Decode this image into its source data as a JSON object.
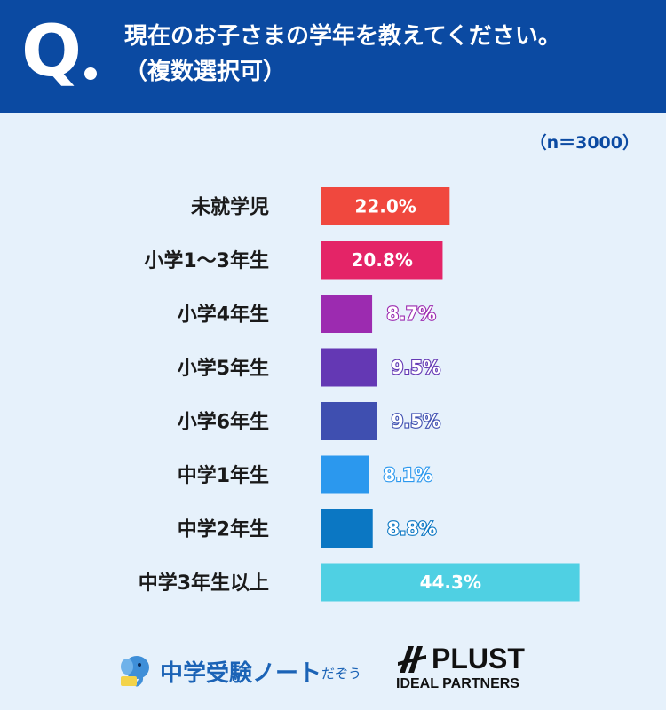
{
  "header": {
    "q_mark": "Q",
    "question_line1": "現在のお子さまの学年を教えてください。",
    "question_line2": "（複数選択可）"
  },
  "sample_size": "（n＝3000）",
  "chart_data": {
    "type": "bar",
    "orientation": "horizontal",
    "categories": [
      "未就学児",
      "小学1〜3年生",
      "小学4年生",
      "小学5年生",
      "小学6年生",
      "中学1年生",
      "中学2年生",
      "中学3年生以上"
    ],
    "values": [
      22.0,
      20.8,
      8.7,
      9.5,
      9.5,
      8.1,
      8.8,
      44.3
    ],
    "value_labels": [
      "22.0%",
      "20.8%",
      "8.7%",
      "9.5%",
      "9.5%",
      "8.1%",
      "8.8%",
      "44.3%"
    ],
    "colors": [
      "#f0483e",
      "#e42467",
      "#9c2bb0",
      "#6438b4",
      "#3f4fb0",
      "#2b98ee",
      "#0b77c3",
      "#4fd0e3"
    ],
    "unit": "%",
    "grid": false,
    "legend": "none"
  },
  "footer": {
    "logo1_text": "中学受験ノート",
    "logo1_suffix": "だぞう",
    "logo1_icon": "elephant-mascot-icon",
    "logo2_name": "PLUST",
    "logo2_sub": "IDEAL PARTNERS",
    "logo2_icon": "plust-mark-icon"
  }
}
